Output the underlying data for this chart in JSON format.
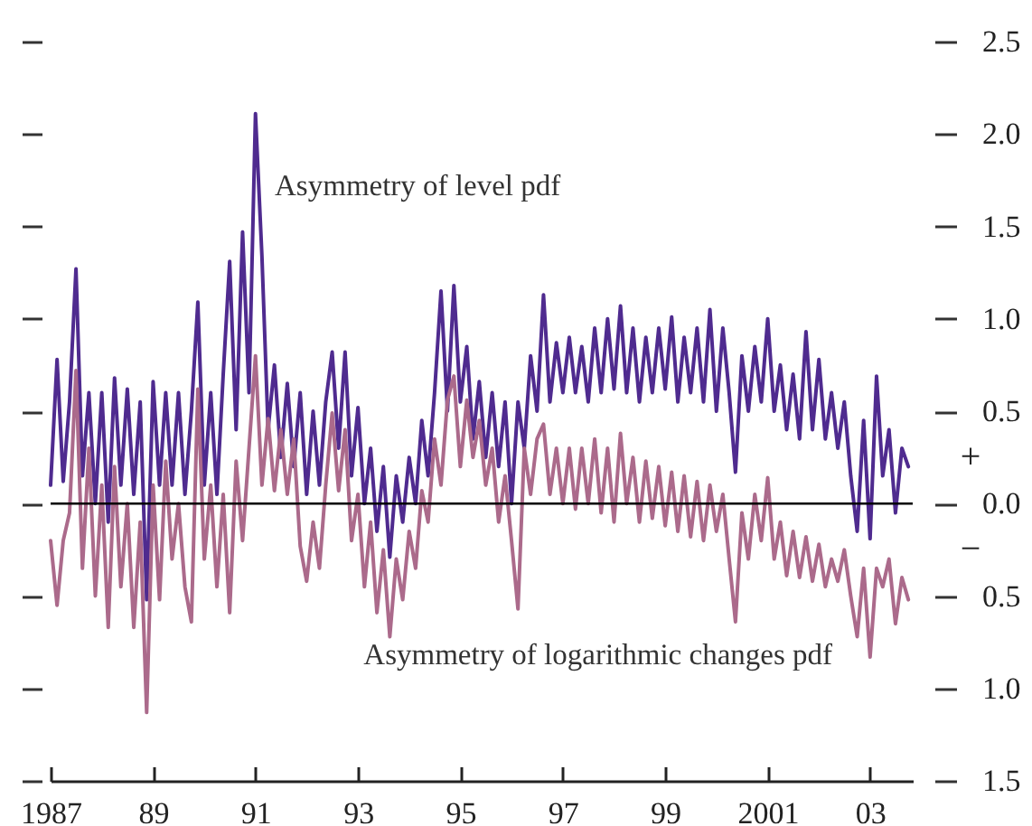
{
  "chart_data": {
    "type": "line",
    "annotations": [
      "+",
      "−"
    ],
    "xlim": [
      "1987-01",
      "2003-11"
    ],
    "xticks": [
      "1987",
      {
        "value": "1989",
        "label": "89"
      },
      {
        "value": "1991",
        "label": "91"
      },
      {
        "value": "1993",
        "label": "93"
      },
      {
        "value": "1995",
        "label": "95"
      },
      {
        "value": "1997",
        "label": "97"
      },
      {
        "value": "1999",
        "label": "99"
      },
      "2001",
      {
        "value": "2003",
        "label": "03"
      }
    ],
    "ylim": [
      -1.5,
      2.5
    ],
    "yticks": [
      2.5,
      {
        "value": 2.0,
        "label": "2.0"
      },
      1.5,
      {
        "value": 1.0,
        "label": "1.0"
      },
      0.5,
      {
        "value": 0,
        "label": "0.0"
      },
      {
        "value": -0.5,
        "label": "0.5"
      },
      {
        "value": -1.0,
        "label": "1.0"
      },
      {
        "value": -1.5,
        "label": "1.5"
      }
    ],
    "ref_lines": [
      {
        "axis": "y",
        "value": 0,
        "color": "#000000"
      }
    ],
    "x": [
      "1987-01-01",
      "1987-02-16",
      "1987-04-01",
      "1987-05-16",
      "1987-07-01",
      "1987-08-16",
      "1987-10-01",
      "1987-11-16",
      "1988-01-01",
      "1988-02-16",
      "1988-04-01",
      "1988-05-16",
      "1988-07-01",
      "1988-08-16",
      "1988-10-01",
      "1988-11-16",
      "1989-01-01",
      "1989-02-16",
      "1989-04-01",
      "1989-05-16",
      "1989-07-01",
      "1989-08-16",
      "1989-10-01",
      "1989-11-16",
      "1990-01-01",
      "1990-02-16",
      "1990-04-01",
      "1990-05-16",
      "1990-07-01",
      "1990-08-16",
      "1990-10-01",
      "1990-11-16",
      "1991-01-01",
      "1991-02-16",
      "1991-04-01",
      "1991-05-16",
      "1991-07-01",
      "1991-08-16",
      "1991-10-01",
      "1991-11-16",
      "1992-01-01",
      "1992-02-16",
      "1992-04-01",
      "1992-05-16",
      "1992-07-01",
      "1992-08-16",
      "1992-10-01",
      "1992-11-16",
      "1993-01-01",
      "1993-02-16",
      "1993-04-01",
      "1993-05-16",
      "1993-07-01",
      "1993-08-16",
      "1993-10-01",
      "1993-11-16",
      "1994-01-01",
      "1994-02-16",
      "1994-04-01",
      "1994-05-16",
      "1994-07-01",
      "1994-08-16",
      "1994-10-01",
      "1994-11-16",
      "1995-01-01",
      "1995-02-16",
      "1995-04-01",
      "1995-05-16",
      "1995-07-01",
      "1995-08-16",
      "1995-10-01",
      "1995-11-16",
      "1996-01-01",
      "1996-02-16",
      "1996-04-01",
      "1996-05-16",
      "1996-07-01",
      "1996-08-16",
      "1996-10-01",
      "1996-11-16",
      "1997-01-01",
      "1997-02-16",
      "1997-04-01",
      "1997-05-16",
      "1997-07-01",
      "1997-08-16",
      "1997-10-01",
      "1997-11-16",
      "1998-01-01",
      "1998-02-16",
      "1998-04-01",
      "1998-05-16",
      "1998-07-01",
      "1998-08-16",
      "1998-10-01",
      "1998-11-16",
      "1999-01-01",
      "1999-02-16",
      "1999-04-01",
      "1999-05-16",
      "1999-07-01",
      "1999-08-16",
      "1999-10-01",
      "1999-11-16",
      "2000-01-01",
      "2000-02-16",
      "2000-04-01",
      "2000-05-16",
      "2000-07-01",
      "2000-08-16",
      "2000-10-01",
      "2000-11-16",
      "2001-01-01",
      "2001-02-16",
      "2001-04-01",
      "2001-05-16",
      "2001-07-01",
      "2001-08-16",
      "2001-10-01",
      "2001-11-16",
      "2002-01-01",
      "2002-02-16",
      "2002-04-01",
      "2002-05-16",
      "2002-07-01",
      "2002-08-16",
      "2002-10-01",
      "2002-11-16",
      "2003-01-01",
      "2003-02-16",
      "2003-04-01",
      "2003-05-16",
      "2003-07-01",
      "2003-08-16",
      "2003-10-01"
    ],
    "series": [
      {
        "name": "Asymmetry of level pdf",
        "color": "#4f2b8f",
        "values": [
          0.1,
          0.78,
          0.12,
          0.55,
          1.27,
          0.15,
          0.6,
          0.0,
          0.6,
          -0.1,
          0.68,
          0.1,
          0.62,
          0.05,
          0.55,
          -0.52,
          0.66,
          0.1,
          0.6,
          0.1,
          0.6,
          0.05,
          0.5,
          1.09,
          0.1,
          0.6,
          0.05,
          0.7,
          1.31,
          0.4,
          1.47,
          0.6,
          2.11,
          1.34,
          0.4,
          0.75,
          0.25,
          0.65,
          0.2,
          0.6,
          0.05,
          0.5,
          0.1,
          0.55,
          0.82,
          0.3,
          0.82,
          0.15,
          0.52,
          0.0,
          0.3,
          -0.15,
          0.2,
          -0.29,
          0.15,
          -0.1,
          0.25,
          0.0,
          0.45,
          0.15,
          0.6,
          1.15,
          0.5,
          1.18,
          0.55,
          0.85,
          0.35,
          0.66,
          0.25,
          0.6,
          0.2,
          0.55,
          0.0,
          0.55,
          0.3,
          0.8,
          0.5,
          1.13,
          0.55,
          0.87,
          0.6,
          0.9,
          0.6,
          0.85,
          0.55,
          0.95,
          0.6,
          1.0,
          0.62,
          1.07,
          0.6,
          0.95,
          0.55,
          0.9,
          0.6,
          0.95,
          0.62,
          1.01,
          0.55,
          0.9,
          0.6,
          0.95,
          0.55,
          1.05,
          0.5,
          0.95,
          0.6,
          0.17,
          0.8,
          0.5,
          0.85,
          0.55,
          1.0,
          0.5,
          0.75,
          0.4,
          0.7,
          0.35,
          0.93,
          0.4,
          0.78,
          0.35,
          0.6,
          0.3,
          0.55,
          0.15,
          -0.15,
          0.45,
          -0.19,
          0.69,
          0.15,
          0.4,
          -0.05,
          0.3,
          0.2
        ]
      },
      {
        "name": "Asymmetry of logarithmic changes pdf",
        "color": "#ab6a8b",
        "values": [
          -0.2,
          -0.55,
          -0.2,
          -0.05,
          0.72,
          -0.35,
          0.3,
          -0.5,
          0.1,
          -0.67,
          0.2,
          -0.45,
          0.0,
          -0.67,
          -0.1,
          -1.13,
          0.1,
          -0.52,
          0.23,
          -0.3,
          0.0,
          -0.45,
          -0.64,
          0.62,
          -0.3,
          0.1,
          -0.45,
          0.05,
          -0.59,
          0.23,
          -0.2,
          0.3,
          0.8,
          0.1,
          0.46,
          0.07,
          0.4,
          0.05,
          0.35,
          -0.23,
          -0.42,
          -0.1,
          -0.35,
          0.1,
          0.49,
          0.07,
          0.4,
          -0.2,
          0.05,
          -0.45,
          -0.1,
          -0.59,
          -0.25,
          -0.72,
          -0.3,
          -0.52,
          -0.15,
          -0.35,
          0.07,
          -0.1,
          0.35,
          0.1,
          0.56,
          0.69,
          0.2,
          0.56,
          0.25,
          0.45,
          0.1,
          0.3,
          -0.1,
          0.15,
          -0.2,
          -0.57,
          0.3,
          0.05,
          0.35,
          0.43,
          0.05,
          0.3,
          0.0,
          0.3,
          -0.03,
          0.3,
          0.0,
          0.35,
          -0.05,
          0.3,
          -0.1,
          0.38,
          0.0,
          0.25,
          -0.1,
          0.23,
          -0.08,
          0.2,
          -0.12,
          0.17,
          -0.15,
          0.15,
          -0.18,
          0.12,
          -0.2,
          0.1,
          -0.15,
          0.05,
          -0.3,
          -0.64,
          -0.05,
          -0.3,
          0.05,
          -0.2,
          0.14,
          -0.3,
          -0.1,
          -0.39,
          -0.15,
          -0.4,
          -0.18,
          -0.42,
          -0.22,
          -0.45,
          -0.3,
          -0.42,
          -0.25,
          -0.5,
          -0.72,
          -0.35,
          -0.83,
          -0.35,
          -0.45,
          -0.3,
          -0.65,
          -0.4,
          -0.52
        ]
      }
    ]
  }
}
